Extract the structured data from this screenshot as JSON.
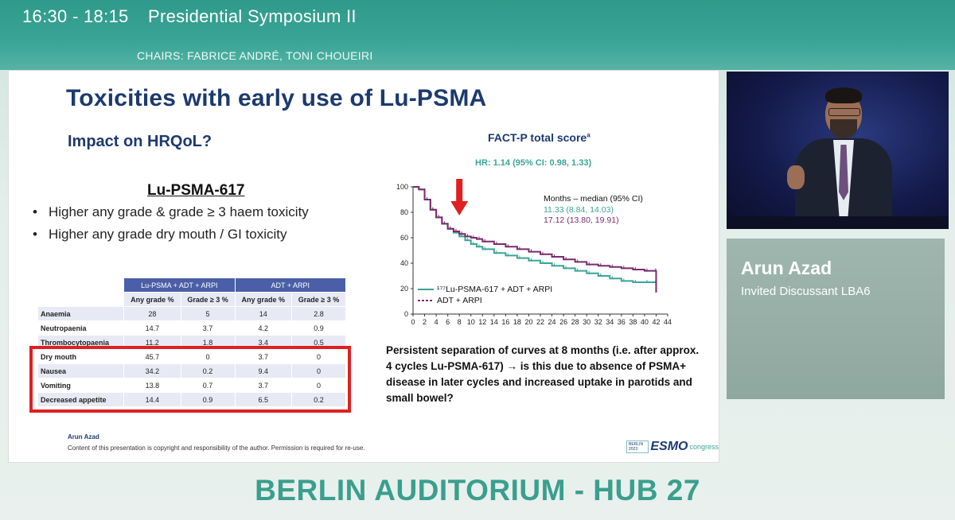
{
  "header": {
    "time": "16:30 - 18:15",
    "session": "Presidential Symposium II",
    "chairs": "CHAIRS: FABRICE ANDRÉ, TONI CHOUEIRI"
  },
  "slide": {
    "title": "Toxicities with early use of Lu-PSMA",
    "subtitle": "Impact on HRQoL?",
    "lu_heading": "Lu-PSMA-617",
    "bullets": [
      "Higher any grade & grade ≥ 3 haem toxicity",
      "Higher any grade dry mouth / GI toxicity"
    ],
    "table": {
      "group_headers": [
        "Lu-PSMA + ADT + ARPI",
        "ADT + ARPI"
      ],
      "sub_headers": [
        "Any grade %",
        "Grade ≥ 3 %",
        "Any grade %",
        "Grade ≥ 3 %"
      ],
      "rows": [
        {
          "label": "Anaemia",
          "values": [
            "28",
            "5",
            "14",
            "2.8"
          ]
        },
        {
          "label": "Neutropaenia",
          "values": [
            "14.7",
            "3.7",
            "4.2",
            "0.9"
          ]
        },
        {
          "label": "Thrombocytopaenia",
          "values": [
            "11.2",
            "1.8",
            "3.4",
            "0.5"
          ]
        },
        {
          "label": "Dry mouth",
          "values": [
            "45.7",
            "0",
            "3.7",
            "0"
          ]
        },
        {
          "label": "Nausea",
          "values": [
            "34.2",
            "0.2",
            "9.4",
            "0"
          ]
        },
        {
          "label": "Vomiting",
          "values": [
            "13.8",
            "0.7",
            "3.7",
            "0"
          ]
        },
        {
          "label": "Decreased appetite",
          "values": [
            "14.4",
            "0.9",
            "6.5",
            "0.2"
          ]
        }
      ]
    },
    "footer_author": "Arun Azad",
    "footer_copy": "Content of this presentation is copyright and responsibility of the author. Permission is required for re-use.",
    "logo": {
      "mark": "BERLIN 2023",
      "esmo": "ESMO",
      "congress": "congress"
    },
    "chart_title": "FACT-P total score",
    "chart_title_sup": "a",
    "hr_text": "HR: 1.14 (95% CI: 0.98, 1.33)",
    "persistent_text": "Persistent separation of curves at 8 months (i.e. after approx. 4 cycles Lu-PSMA-617) → is this due to absence of PSMA+ disease in later cycles and increased uptake in parotids and small bowel?"
  },
  "chart_data": {
    "type": "line",
    "title": "FACT-P total score",
    "xlabel": "",
    "ylabel": "",
    "xlim": [
      0,
      44
    ],
    "ylim": [
      0,
      100
    ],
    "x_ticks": [
      "0",
      "2",
      "4",
      "6",
      "8",
      "10",
      "12",
      "14",
      "16",
      "18",
      "20",
      "22",
      "24",
      "26",
      "28",
      "30",
      "32",
      "34",
      "36",
      "38",
      "40",
      "42",
      "44"
    ],
    "y_ticks": [
      "0",
      "20",
      "40",
      "60",
      "80",
      "100"
    ],
    "legend_header": "Months – median (95% CI)",
    "series": [
      {
        "name": "¹⁷⁷Lu-PSMA-617 + ADT + ARPI",
        "median": "11.33 (8.84, 14.03)",
        "color": "#3aa596",
        "x": [
          0,
          1,
          2,
          3,
          4,
          5,
          6,
          7,
          8,
          9,
          10,
          11,
          12,
          14,
          16,
          18,
          20,
          22,
          24,
          26,
          28,
          30,
          32,
          34,
          36,
          38,
          40,
          41.5,
          42
        ],
        "y": [
          100,
          98,
          90,
          82,
          76,
          71,
          67,
          64,
          61,
          58,
          55,
          53,
          51,
          48,
          46,
          44,
          42,
          40,
          38,
          36,
          34,
          32,
          30,
          28,
          26,
          25,
          25,
          25,
          17
        ]
      },
      {
        "name": "ADT + ARPI",
        "median": "17.12 (13.80, 19.91)",
        "color": "#7a2b6e",
        "x": [
          0,
          1,
          2,
          3,
          4,
          5,
          6,
          7,
          8,
          9,
          10,
          11,
          12,
          14,
          16,
          18,
          20,
          22,
          24,
          26,
          28,
          30,
          32,
          34,
          36,
          38,
          40,
          41.5,
          42
        ],
        "y": [
          100,
          98,
          90,
          82,
          76,
          71,
          67,
          65,
          63,
          61,
          60,
          59,
          57,
          55,
          53,
          51,
          49,
          47,
          45,
          43,
          41,
          39,
          38,
          37,
          36,
          35,
          34,
          34,
          17
        ]
      }
    ],
    "annotation": "arrow at 8 months",
    "annotation_color": "#e02020"
  },
  "presenter": {
    "name": "Arun Azad",
    "role": "Invited Discussant LBA6"
  },
  "location": "BERLIN AUDITORIUM - HUB 27"
}
